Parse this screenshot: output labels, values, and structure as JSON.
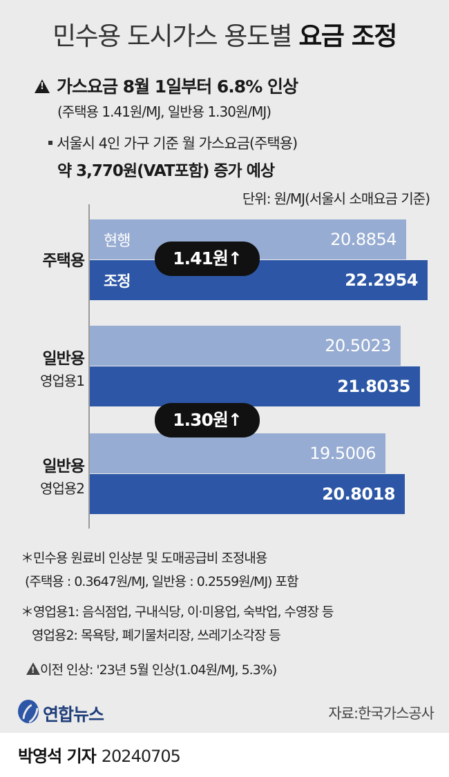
{
  "title": {
    "light": "민수용 도시가스 용도별 ",
    "bold": "요금 조정"
  },
  "headline": {
    "text": "가스요금 8월 1일부터 6.8% 인상",
    "sub": "(주택용 1.41원/MJ, 일반용 1.30원/MJ)"
  },
  "household": {
    "text": "서울시 4인 가구 기준 월 가스요금(주택용)",
    "bold": "약 3,770원(VAT포함) 증가 예상"
  },
  "unit_text": "단위: 원/MJ(서울시 소매요금 기준)",
  "chart_data": {
    "type": "bar",
    "orientation": "horizontal",
    "categories": [
      "주택용",
      "일반용 영업용1",
      "일반용 영업용2"
    ],
    "series": [
      {
        "name": "현행",
        "values": [
          20.8854,
          20.5023,
          19.5006
        ],
        "labels": [
          "20.8854",
          "20.5023",
          "19.5006"
        ]
      },
      {
        "name": "조정",
        "values": [
          22.2954,
          21.8035,
          20.8018
        ],
        "labels": [
          "22.2954",
          "21.8035",
          "20.8018"
        ]
      }
    ],
    "ylabel": "단위: 원/MJ(서울시 소매요금 기준)",
    "xlim": [
      0,
      22.2954
    ],
    "annotations": [
      "1.41원↑",
      "1.30원↑"
    ],
    "colors": {
      "prev": "#97acd2",
      "adj": "#2d57a6"
    }
  },
  "categories_display": [
    {
      "main": "주택용",
      "sub": ""
    },
    {
      "main": "일반용",
      "sub": "영업용1"
    },
    {
      "main": "일반용",
      "sub": "영업용2"
    }
  ],
  "notes": [
    "＊민수용 원료비 인상분 및 도매공급비 조정내용",
    "(주택용 : 0.3647원/MJ, 일반용 : 0.2559원/MJ) 포함",
    "＊영업용1: 음식점업, 구내식당, 이·미용업, 숙박업, 수영장 등",
    "영업용2: 목욕탕, 폐기물처리장, 쓰레기소각장 등",
    "이전 인상: '23년 5월 인상(1.04원/MJ, 5.3%)"
  ],
  "logo": "연합뉴스",
  "source": "자료:한국가스공사",
  "footer": {
    "author": "박영석 기자",
    "date": "20240705"
  },
  "icons": [
    "warning-icon",
    "yonhap-logo-icon"
  ]
}
